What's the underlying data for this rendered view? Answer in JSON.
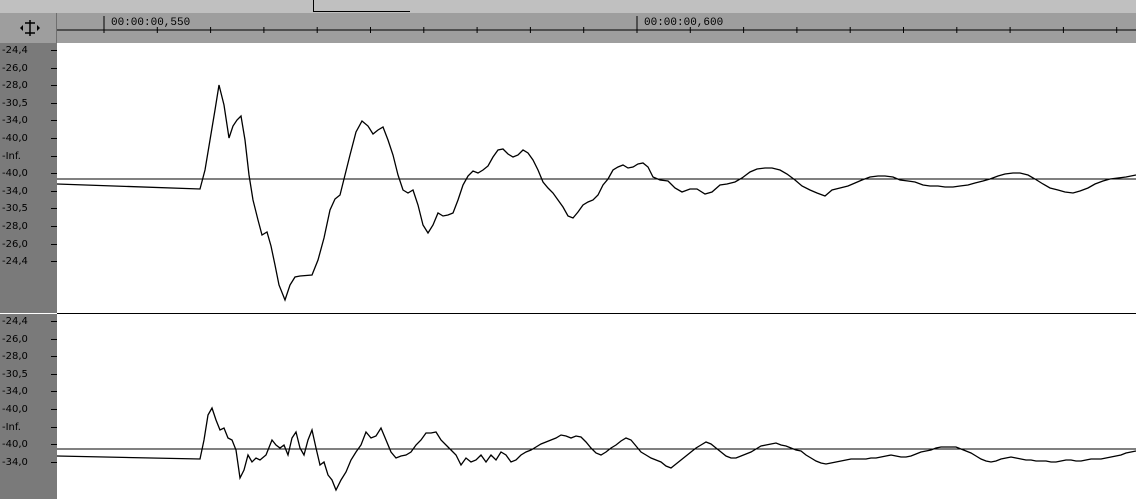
{
  "ruler": {
    "times": [
      "00:00:00,550",
      "00:00:00,600"
    ]
  },
  "channels": [
    {
      "scale_labels": [
        "-24,4",
        "-26,0",
        "-28,0",
        "-30,5",
        "-34,0",
        "-40,0",
        "-Inf.",
        "-40,0",
        "-34,0",
        "-30,5",
        "-28,0",
        "-26,0",
        "-24,4"
      ]
    },
    {
      "scale_labels": [
        "-24,4",
        "-26,0",
        "-28,0",
        "-30,5",
        "-34,0",
        "-40,0",
        "-Inf.",
        "-40,0",
        "-34,0"
      ]
    }
  ],
  "icons": {
    "corner": "zoom-vertical-icon"
  },
  "colors": {
    "ruler_bg": "#9e9e9e",
    "scale_bg": "#7a7a7a",
    "wave": "#000000",
    "canvas": "#ffffff"
  }
}
